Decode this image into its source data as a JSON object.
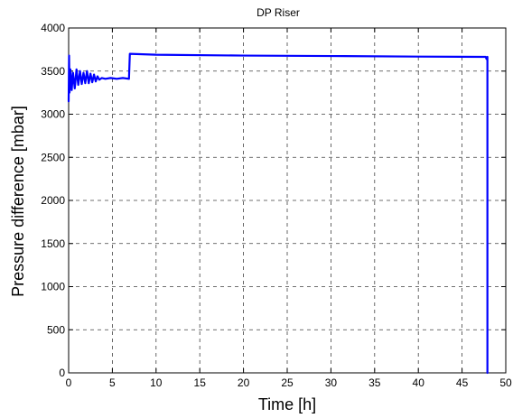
{
  "chart_data": {
    "type": "line",
    "title": "DP Riser",
    "xlabel": "Time [h]",
    "ylabel": "Pressure difference [mbar]",
    "xlim": [
      0,
      50
    ],
    "ylim": [
      0,
      4000
    ],
    "xticks": [
      0,
      5,
      10,
      15,
      20,
      25,
      30,
      35,
      40,
      45,
      50
    ],
    "yticks": [
      0,
      500,
      1000,
      1500,
      2000,
      2500,
      3000,
      3500,
      4000
    ],
    "grid": true,
    "series": [
      {
        "color": "#0000ff",
        "points": [
          [
            0.0,
            3150
          ],
          [
            0.05,
            3680
          ],
          [
            0.1,
            3250
          ],
          [
            0.2,
            3520
          ],
          [
            0.35,
            3280
          ],
          [
            0.5,
            3480
          ],
          [
            0.7,
            3300
          ],
          [
            0.9,
            3520
          ],
          [
            1.1,
            3340
          ],
          [
            1.3,
            3500
          ],
          [
            1.5,
            3350
          ],
          [
            1.7,
            3480
          ],
          [
            1.9,
            3360
          ],
          [
            2.1,
            3500
          ],
          [
            2.3,
            3360
          ],
          [
            2.5,
            3470
          ],
          [
            2.7,
            3370
          ],
          [
            2.9,
            3460
          ],
          [
            3.1,
            3380
          ],
          [
            3.3,
            3440
          ],
          [
            3.5,
            3400
          ],
          [
            3.8,
            3420
          ],
          [
            4.2,
            3410
          ],
          [
            4.8,
            3420
          ],
          [
            5.5,
            3410
          ],
          [
            6.2,
            3420
          ],
          [
            6.9,
            3410
          ],
          [
            7.0,
            3700
          ],
          [
            10.0,
            3690
          ],
          [
            20.0,
            3680
          ],
          [
            30.0,
            3675
          ],
          [
            40.0,
            3668
          ],
          [
            47.7,
            3665
          ],
          [
            47.8,
            3640
          ],
          [
            47.9,
            3665
          ],
          [
            47.9,
            0
          ]
        ]
      }
    ]
  }
}
